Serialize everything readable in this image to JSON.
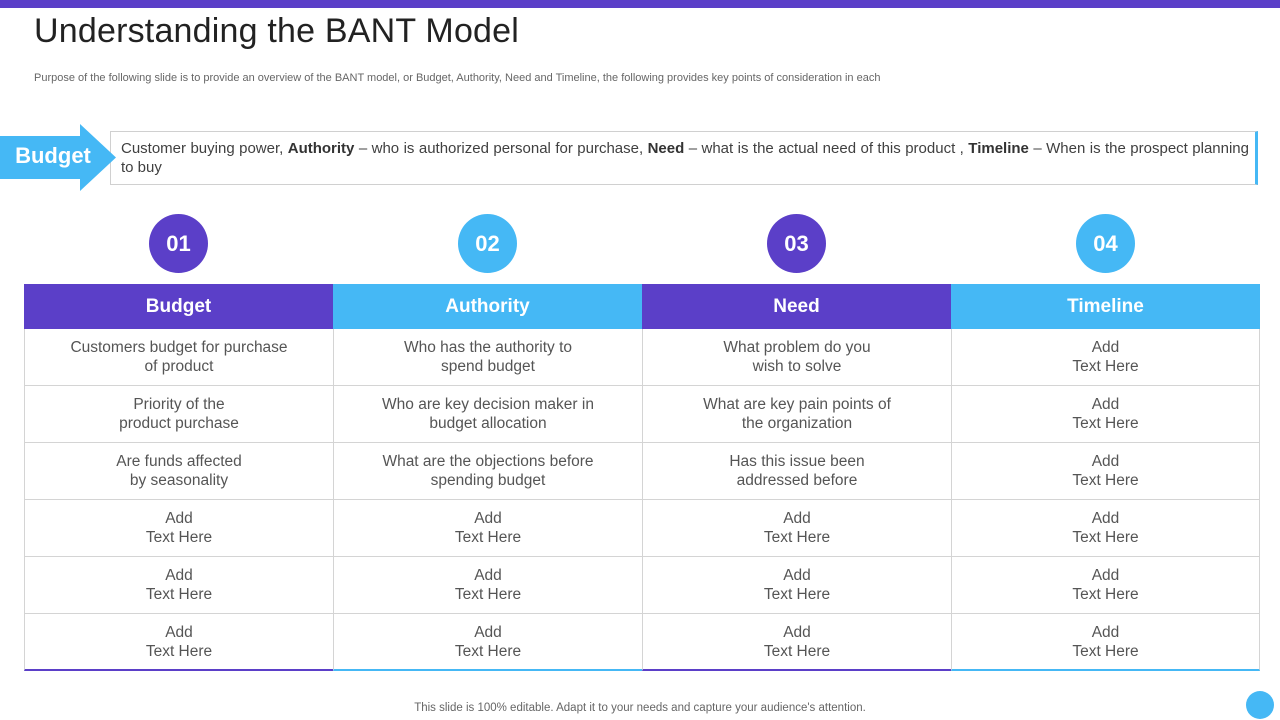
{
  "colors": {
    "purple": "#5b3fc8",
    "blue": "#45b8f5"
  },
  "title": "Understanding the BANT Model",
  "subtitle": "Purpose of the following slide is to provide an overview of the BANT model, or Budget, Authority,  Need and Timeline, the following provides key points of consideration in each",
  "arrow_label": "Budget",
  "description": {
    "part1": "Customer buying power, ",
    "authority_bold": "Authority",
    "part2": " – who is authorized personal for purchase, ",
    "need_bold": "Need",
    "part3": " – what is the actual need of this product , ",
    "timeline_bold": "Timeline",
    "part4": " – When is the prospect planning to buy"
  },
  "columns": [
    {
      "number": "01",
      "header": "Budget",
      "color": "purple",
      "rows": [
        "Customers budget for purchase\nof product",
        "Priority of the\nproduct purchase",
        "Are funds affected\nby seasonality",
        "Add\nText Here",
        "Add\nText Here",
        "Add\nText Here"
      ]
    },
    {
      "number": "02",
      "header": "Authority",
      "color": "blue",
      "rows": [
        "Who has the authority to\nspend budget",
        "Who are key decision maker in\nbudget allocation",
        "What are the objections before\nspending budget",
        "Add\nText Here",
        "Add\nText Here",
        "Add\nText Here"
      ]
    },
    {
      "number": "03",
      "header": "Need",
      "color": "purple",
      "rows": [
        "What problem do you\nwish to solve",
        "What are key pain points of\nthe organization",
        "Has this issue been\naddressed before",
        "Add\nText Here",
        "Add\nText Here",
        "Add\nText Here"
      ]
    },
    {
      "number": "04",
      "header": "Timeline",
      "color": "blue",
      "rows": [
        "Add\nText Here",
        "Add\nText Here",
        "Add\nText Here",
        "Add\nText Here",
        "Add\nText Here",
        "Add\nText Here"
      ]
    }
  ],
  "footer": "This slide is 100% editable. Adapt it to your needs and capture your audience's attention."
}
